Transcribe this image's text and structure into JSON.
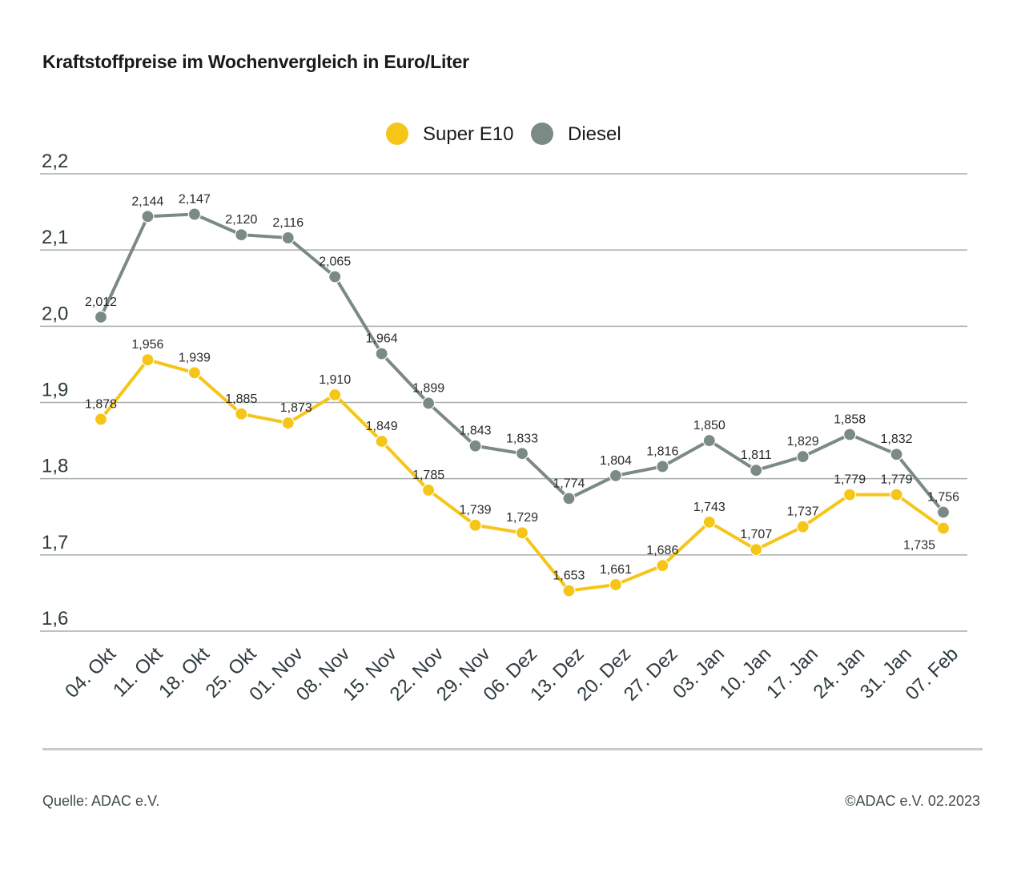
{
  "header": {
    "title": "Kraftstoffpreise im Wochenvergleich in Euro/Liter"
  },
  "footer": {
    "source": "Quelle: ADAC e.V.",
    "copyright": "©ADAC e.V. 02.2023"
  },
  "chart_data": {
    "type": "line",
    "title": "Kraftstoffpreise im Wochenvergleich in Euro/Liter",
    "categories": [
      "04. Okt",
      "11. Okt",
      "18. Okt",
      "25. Okt",
      "01. Nov",
      "08. Nov",
      "15. Nov",
      "22. Nov",
      "29. Nov",
      "06. Dez",
      "13. Dez",
      "20. Dez",
      "27. Dez",
      "03. Jan",
      "10. Jan",
      "17. Jan",
      "24. Jan",
      "31. Jan",
      "07. Feb"
    ],
    "ylim": [
      1.6,
      2.2
    ],
    "yticks": [
      1.6,
      1.7,
      1.8,
      1.9,
      2.0,
      2.1,
      2.2
    ],
    "ytick_labels": [
      "1,6",
      "1,7",
      "1,8",
      "1,9",
      "2,0",
      "2,1",
      "2,2"
    ],
    "grid": true,
    "legend_position": "top-center",
    "series": [
      {
        "name": "Super E10",
        "color": "#f5c518",
        "values": [
          1.878,
          1.956,
          1.939,
          1.885,
          1.873,
          1.91,
          1.849,
          1.785,
          1.739,
          1.729,
          1.653,
          1.661,
          1.686,
          1.743,
          1.707,
          1.737,
          1.779,
          1.779,
          1.735
        ],
        "labels": [
          "1,878",
          "1,956",
          "1,939",
          "1,885",
          "1,873",
          "1,910",
          "1,849",
          "1,785",
          "1,739",
          "1,729",
          "1,653",
          "1,661",
          "1,686",
          "1,743",
          "1,707",
          "1,737",
          "1,779",
          "1,779",
          "1,735"
        ]
      },
      {
        "name": "Diesel",
        "color": "#7b8a87",
        "values": [
          2.012,
          2.144,
          2.147,
          2.12,
          2.116,
          2.065,
          1.964,
          1.899,
          1.843,
          1.833,
          1.774,
          1.804,
          1.816,
          1.85,
          1.811,
          1.829,
          1.858,
          1.832,
          1.756
        ],
        "labels": [
          "2,012",
          "2,144",
          "2,147",
          "2,120",
          "2,116",
          "2,065",
          "1,964",
          "1,899",
          "1,843",
          "1,833",
          "1,774",
          "1,804",
          "1,816",
          "1,850",
          "1,811",
          "1,829",
          "1,858",
          "1,832",
          "1,756"
        ]
      }
    ]
  }
}
